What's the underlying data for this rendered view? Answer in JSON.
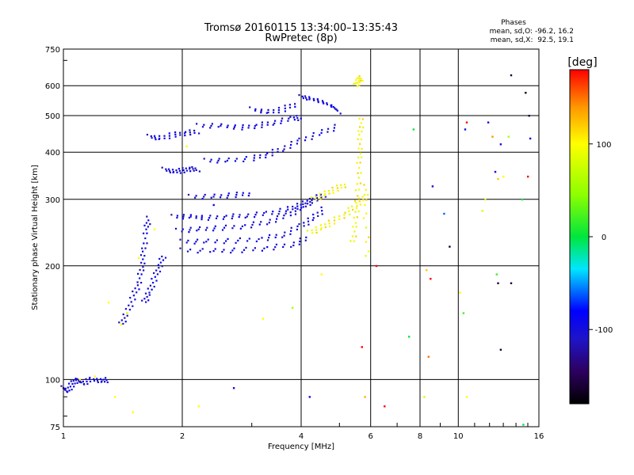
{
  "chart_data": {
    "type": "scatter",
    "title": "Tromsø 20160115 13:34:00–13:35:43",
    "subtitle": "RwPretec (8p)",
    "xlabel": "Frequency [MHz]",
    "ylabel": "Stationary phase Virtual Height [km]",
    "x_scale": "log",
    "y_scale": "log",
    "xlim": [
      1,
      16
    ],
    "ylim": [
      75,
      750
    ],
    "grid": true,
    "x_ticks": [
      1,
      2,
      4,
      6,
      8,
      10,
      16
    ],
    "x_tick_labels": [
      "1",
      "2",
      "4",
      "6",
      "8",
      "10",
      "16"
    ],
    "y_ticks": [
      75,
      100,
      200,
      300,
      400,
      500,
      600,
      750
    ],
    "y_tick_labels": [
      "75",
      "100",
      "200",
      "300",
      "400",
      "500",
      "600",
      "750"
    ],
    "stats": {
      "heading": "Phases",
      "line_o": "mean, sd,O: -96.2, 16.2",
      "line_x": "mean, sd,X:  92.5, 19.1"
    },
    "colorbar": {
      "label": "[deg]",
      "range": [
        -180,
        180
      ],
      "ticks": [
        100,
        0,
        -100
      ],
      "tick_labels": [
        "100",
        "0",
        "-100"
      ],
      "colors": [
        "#ff0000",
        "#ffff00",
        "#00ff00",
        "#00ffff",
        "#0000ff",
        "#2a0060",
        "#000000"
      ]
    },
    "traces": [
      {
        "name": "",
        "phase": -100,
        "points": [
          [
            1.0,
            95
          ],
          [
            1.02,
            93
          ],
          [
            1.05,
            97
          ],
          [
            1.08,
            100
          ],
          [
            1.12,
            98
          ],
          [
            1.18,
            100
          ],
          [
            1.25,
            99
          ],
          [
            1.3,
            100
          ]
        ]
      },
      {
        "name": "",
        "phase": -100,
        "points": [
          [
            1.4,
            140
          ],
          [
            1.45,
            150
          ],
          [
            1.5,
            165
          ],
          [
            1.55,
            180
          ],
          [
            1.58,
            200
          ],
          [
            1.6,
            220
          ],
          [
            1.62,
            250
          ],
          [
            1.65,
            270
          ]
        ]
      },
      {
        "name": "",
        "phase": -100,
        "points": [
          [
            1.6,
            160
          ],
          [
            1.65,
            170
          ],
          [
            1.7,
            185
          ],
          [
            1.75,
            200
          ],
          [
            1.8,
            215
          ]
        ]
      },
      {
        "name": "",
        "phase": -100,
        "points": [
          [
            1.65,
            440
          ],
          [
            1.75,
            435
          ],
          [
            1.9,
            445
          ],
          [
            2.05,
            450
          ],
          [
            2.2,
            455
          ]
        ]
      },
      {
        "name": "",
        "phase": -100,
        "points": [
          [
            1.8,
            360
          ],
          [
            1.9,
            355
          ],
          [
            2.0,
            358
          ],
          [
            2.1,
            362
          ],
          [
            2.2,
            360
          ]
        ]
      },
      {
        "name": "",
        "phase": -100,
        "points": [
          [
            2.2,
            470
          ],
          [
            2.5,
            470
          ],
          [
            2.8,
            465
          ],
          [
            3.1,
            470
          ],
          [
            3.4,
            480
          ],
          [
            3.8,
            490
          ],
          [
            4.0,
            495
          ]
        ]
      },
      {
        "name": "",
        "phase": -100,
        "points": [
          [
            2.3,
            380
          ],
          [
            2.6,
            380
          ],
          [
            3.0,
            385
          ],
          [
            3.3,
            395
          ],
          [
            3.6,
            410
          ],
          [
            4.0,
            430
          ],
          [
            4.5,
            450
          ],
          [
            5.0,
            470
          ]
        ]
      },
      {
        "name": "",
        "phase": -100,
        "points": [
          [
            3.0,
            520
          ],
          [
            3.3,
            510
          ],
          [
            3.6,
            520
          ],
          [
            3.9,
            540
          ]
        ]
      },
      {
        "name": "",
        "phase": -100,
        "points": [
          [
            4.0,
            560
          ],
          [
            4.2,
            555
          ],
          [
            4.5,
            545
          ],
          [
            4.8,
            530
          ],
          [
            5.0,
            510
          ]
        ]
      },
      {
        "name": "",
        "phase": -100,
        "points": [
          [
            1.9,
            270
          ],
          [
            2.1,
            270
          ],
          [
            2.3,
            268
          ],
          [
            2.6,
            270
          ],
          [
            2.9,
            272
          ],
          [
            3.3,
            275
          ],
          [
            3.7,
            282
          ],
          [
            4.0,
            290
          ],
          [
            4.3,
            300
          ],
          [
            4.6,
            310
          ]
        ]
      },
      {
        "name": "",
        "phase": -100,
        "points": [
          [
            1.95,
            248
          ],
          [
            2.2,
            250
          ],
          [
            2.5,
            252
          ],
          [
            2.9,
            255
          ],
          [
            3.3,
            262
          ],
          [
            3.7,
            272
          ],
          [
            4.0,
            285
          ],
          [
            4.3,
            300
          ]
        ]
      },
      {
        "name": "",
        "phase": -100,
        "points": [
          [
            2.0,
            232
          ],
          [
            2.3,
            232
          ],
          [
            2.7,
            233
          ],
          [
            3.2,
            236
          ],
          [
            3.6,
            242
          ],
          [
            4.0,
            255
          ],
          [
            4.3,
            268
          ],
          [
            4.6,
            285
          ]
        ]
      },
      {
        "name": "",
        "phase": -100,
        "points": [
          [
            2.0,
            220
          ],
          [
            2.4,
            219
          ],
          [
            2.8,
            220
          ],
          [
            3.3,
            223
          ],
          [
            3.8,
            228
          ],
          [
            4.2,
            238
          ]
        ]
      },
      {
        "name": "",
        "phase": -100,
        "points": [
          [
            2.1,
            305
          ],
          [
            2.4,
            305
          ],
          [
            2.7,
            308
          ],
          [
            3.0,
            312
          ]
        ]
      },
      {
        "name": "",
        "phase": 100,
        "points": [
          [
            4.2,
            245
          ],
          [
            4.5,
            252
          ],
          [
            4.8,
            262
          ],
          [
            5.2,
            275
          ],
          [
            5.5,
            290
          ],
          [
            5.8,
            305
          ]
        ]
      },
      {
        "name": "",
        "phase": 100,
        "points": [
          [
            4.3,
            300
          ],
          [
            4.6,
            310
          ],
          [
            4.9,
            320
          ],
          [
            5.2,
            330
          ]
        ]
      },
      {
        "name": "",
        "phase": 100,
        "points": [
          [
            5.4,
            230
          ],
          [
            5.5,
            260
          ],
          [
            5.55,
            300
          ],
          [
            5.6,
            350
          ],
          [
            5.62,
            400
          ],
          [
            5.65,
            450
          ],
          [
            5.7,
            500
          ]
        ]
      },
      {
        "name": "",
        "phase": 100,
        "points": [
          [
            5.5,
            600
          ],
          [
            5.6,
            620
          ],
          [
            5.7,
            630
          ]
        ]
      },
      {
        "name": "",
        "phase": 100,
        "points": [
          [
            5.9,
            210
          ],
          [
            5.8,
            290
          ],
          [
            5.85,
            330
          ]
        ]
      }
    ],
    "points": [
      [
        1.4,
        140,
        100
      ],
      [
        1.45,
        150,
        100
      ],
      [
        1.3,
        160,
        100
      ],
      [
        1.55,
        210,
        100
      ],
      [
        1.7,
        250,
        100
      ],
      [
        1.35,
        90,
        100
      ],
      [
        1.5,
        82,
        100
      ],
      [
        1.1,
        100,
        100
      ],
      [
        1.2,
        102,
        100
      ],
      [
        2.05,
        415,
        100
      ],
      [
        2.4,
        290,
        -100
      ],
      [
        3.2,
        145,
        100
      ],
      [
        3.8,
        155,
        60
      ],
      [
        2.2,
        85,
        100
      ],
      [
        2.7,
        95,
        -100
      ],
      [
        4.5,
        190,
        100
      ],
      [
        4.2,
        90,
        -100
      ],
      [
        5.7,
        122,
        180
      ],
      [
        5.8,
        90,
        130
      ],
      [
        6.2,
        200,
        180
      ],
      [
        6.5,
        85,
        180
      ],
      [
        7.5,
        130,
        0
      ],
      [
        7.7,
        460,
        0
      ],
      [
        8.3,
        195,
        120
      ],
      [
        8.5,
        185,
        180
      ],
      [
        8.4,
        115,
        150
      ],
      [
        8.6,
        325,
        -100
      ],
      [
        8.2,
        90,
        80
      ],
      [
        9.2,
        275,
        -60
      ],
      [
        9.5,
        225,
        -160
      ],
      [
        10.1,
        170,
        100
      ],
      [
        10.3,
        150,
        20
      ],
      [
        10.4,
        460,
        -100
      ],
      [
        10.5,
        480,
        180
      ],
      [
        10.5,
        90,
        100
      ],
      [
        11.5,
        280,
        80
      ],
      [
        11.7,
        300,
        80
      ],
      [
        12.2,
        440,
        140
      ],
      [
        12.5,
        190,
        20
      ],
      [
        12.4,
        355,
        -100
      ],
      [
        12.6,
        340,
        120
      ],
      [
        12.8,
        420,
        -100
      ],
      [
        12.8,
        120,
        -160
      ],
      [
        12.6,
        180,
        -160
      ],
      [
        13.4,
        440,
        60
      ],
      [
        13.6,
        180,
        -160
      ],
      [
        13.6,
        640,
        -160
      ],
      [
        14.5,
        300,
        0
      ],
      [
        14.8,
        575,
        -170
      ],
      [
        15.0,
        345,
        180
      ],
      [
        15.1,
        500,
        -160
      ],
      [
        14.6,
        76,
        0
      ],
      [
        15.2,
        435,
        -100
      ],
      [
        11.9,
        480,
        -100
      ],
      [
        13.0,
        345,
        100
      ]
    ]
  }
}
